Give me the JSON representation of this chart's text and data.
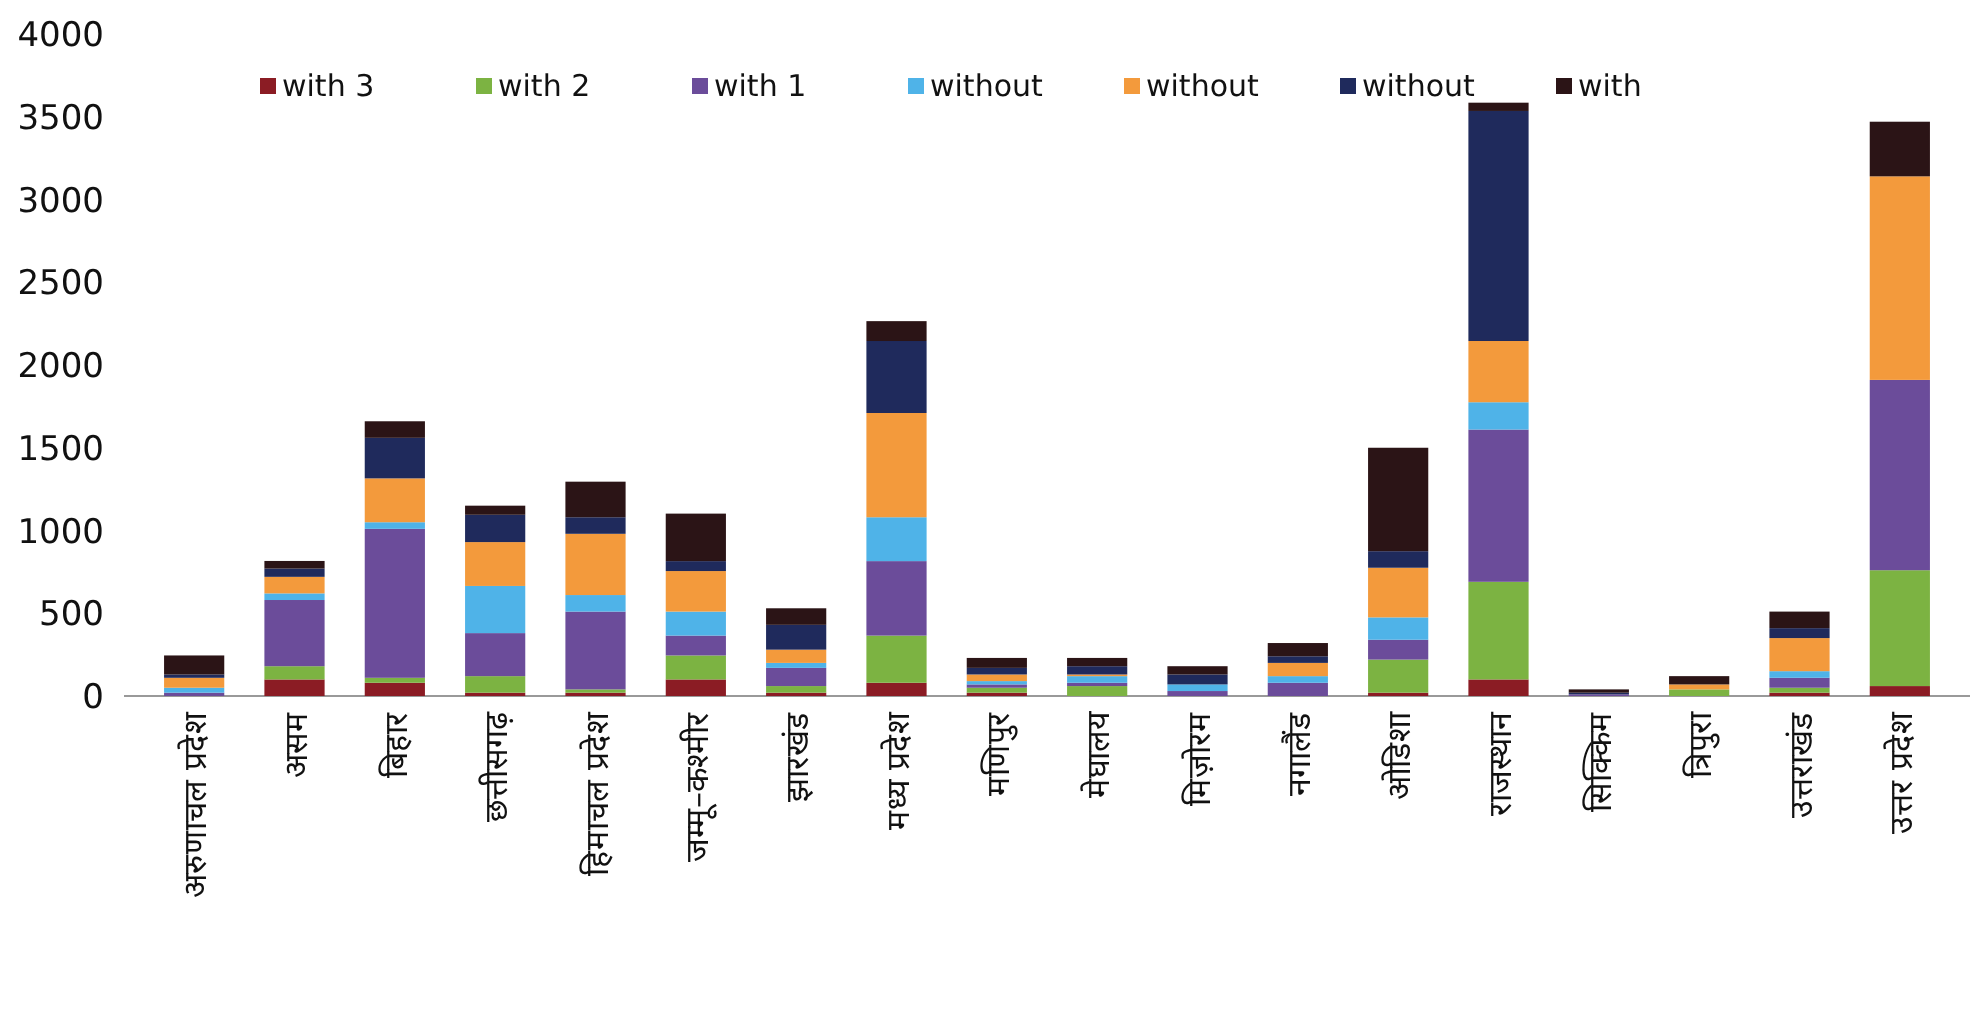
{
  "chart_data": {
    "type": "bar",
    "stacked": true,
    "legend": "top",
    "grid": false,
    "categories": [
      "अरुणाचल प्रदेश",
      "असम",
      "बिहार",
      "छत्तीसगढ़",
      "हिमाचल प्रदेश",
      "जम्मू–कश्मीर",
      "झारखंड",
      "मध्य प्रदेश",
      "मणिपुर",
      "मेघालय",
      "मिज़ोरम",
      "नगालैंड",
      "ओडिशा",
      "राजस्थान",
      "सिक्किम",
      "त्रिपुरा",
      "उत्तराखंड",
      "उत्तर प्रदेश"
    ],
    "ylim": [
      0,
      4000
    ],
    "yticks": [
      0,
      500,
      1000,
      1500,
      2000,
      2500,
      3000,
      3500,
      4000
    ],
    "series": [
      {
        "name": "with 3",
        "color": "#8b1c24",
        "values": [
          0,
          100,
          80,
          20,
          20,
          100,
          20,
          80,
          20,
          0,
          0,
          0,
          20,
          100,
          0,
          0,
          20,
          60
        ]
      },
      {
        "name": "with 2",
        "color": "#7cb342",
        "values": [
          0,
          80,
          30,
          100,
          20,
          145,
          40,
          285,
          30,
          60,
          0,
          0,
          200,
          590,
          0,
          40,
          30,
          700
        ]
      },
      {
        "name": "with 1",
        "color": "#6b4c9a",
        "values": [
          20,
          400,
          900,
          260,
          470,
          120,
          110,
          450,
          20,
          20,
          30,
          80,
          120,
          920,
          10,
          0,
          60,
          1150
        ]
      },
      {
        "name": "without",
        "color": "#4fb3e8",
        "values": [
          30,
          40,
          40,
          285,
          100,
          145,
          30,
          265,
          20,
          40,
          40,
          40,
          135,
          165,
          0,
          0,
          40,
          0
        ]
      },
      {
        "name": "without",
        "color": "#f39a3c",
        "values": [
          60,
          100,
          265,
          265,
          370,
          245,
          80,
          630,
          40,
          10,
          0,
          80,
          300,
          370,
          0,
          30,
          200,
          1230
        ]
      },
      {
        "name": "without",
        "color": "#1f2a5c",
        "values": [
          20,
          50,
          245,
          165,
          100,
          60,
          150,
          435,
          40,
          50,
          60,
          40,
          100,
          1390,
          10,
          0,
          60,
          0
        ]
      },
      {
        "name": "with",
        "color": "#2b1416",
        "values": [
          115,
          46,
          100,
          55,
          215,
          287,
          100,
          120,
          60,
          50,
          50,
          80,
          625,
          50,
          20,
          50,
          100,
          330
        ]
      }
    ]
  }
}
